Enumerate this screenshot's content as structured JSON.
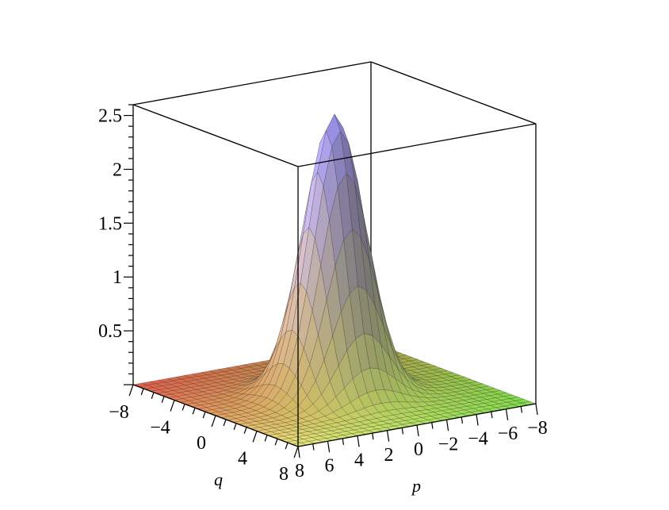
{
  "chart_data": {
    "type": "surface3d",
    "function": "2.6 * exp(-(p^2 + q^2)/6)",
    "peak_value": 2.6,
    "x": {
      "name": "p",
      "label": "p",
      "range": [
        -8,
        8
      ],
      "ticks": [
        8,
        6,
        4,
        2,
        0,
        -2,
        -4,
        -6,
        -8
      ],
      "tick_labels": [
        "8",
        "6",
        "4",
        "2",
        "0",
        "−2",
        "−4",
        "−6",
        "−8"
      ]
    },
    "y": {
      "name": "q",
      "label": "q",
      "range": [
        -8,
        8
      ],
      "ticks": [
        -8,
        -4,
        0,
        4,
        8
      ],
      "tick_labels": [
        "−8",
        "−4",
        "0",
        "4",
        "8"
      ]
    },
    "z": {
      "range": [
        0,
        2.6
      ],
      "ticks": [
        0.5,
        1,
        1.5,
        2,
        2.5
      ],
      "tick_labels": [
        "0.5",
        "1",
        "1.5",
        "2",
        "2.5"
      ]
    },
    "grid_resolution": 28,
    "colors": {
      "far_corner": "#e25a4a",
      "near_q": "#e6e04e",
      "near_p": "#7fe04a",
      "peak": "#9a90e8",
      "mesh": "#2a2a2a",
      "box": "#000000"
    }
  }
}
